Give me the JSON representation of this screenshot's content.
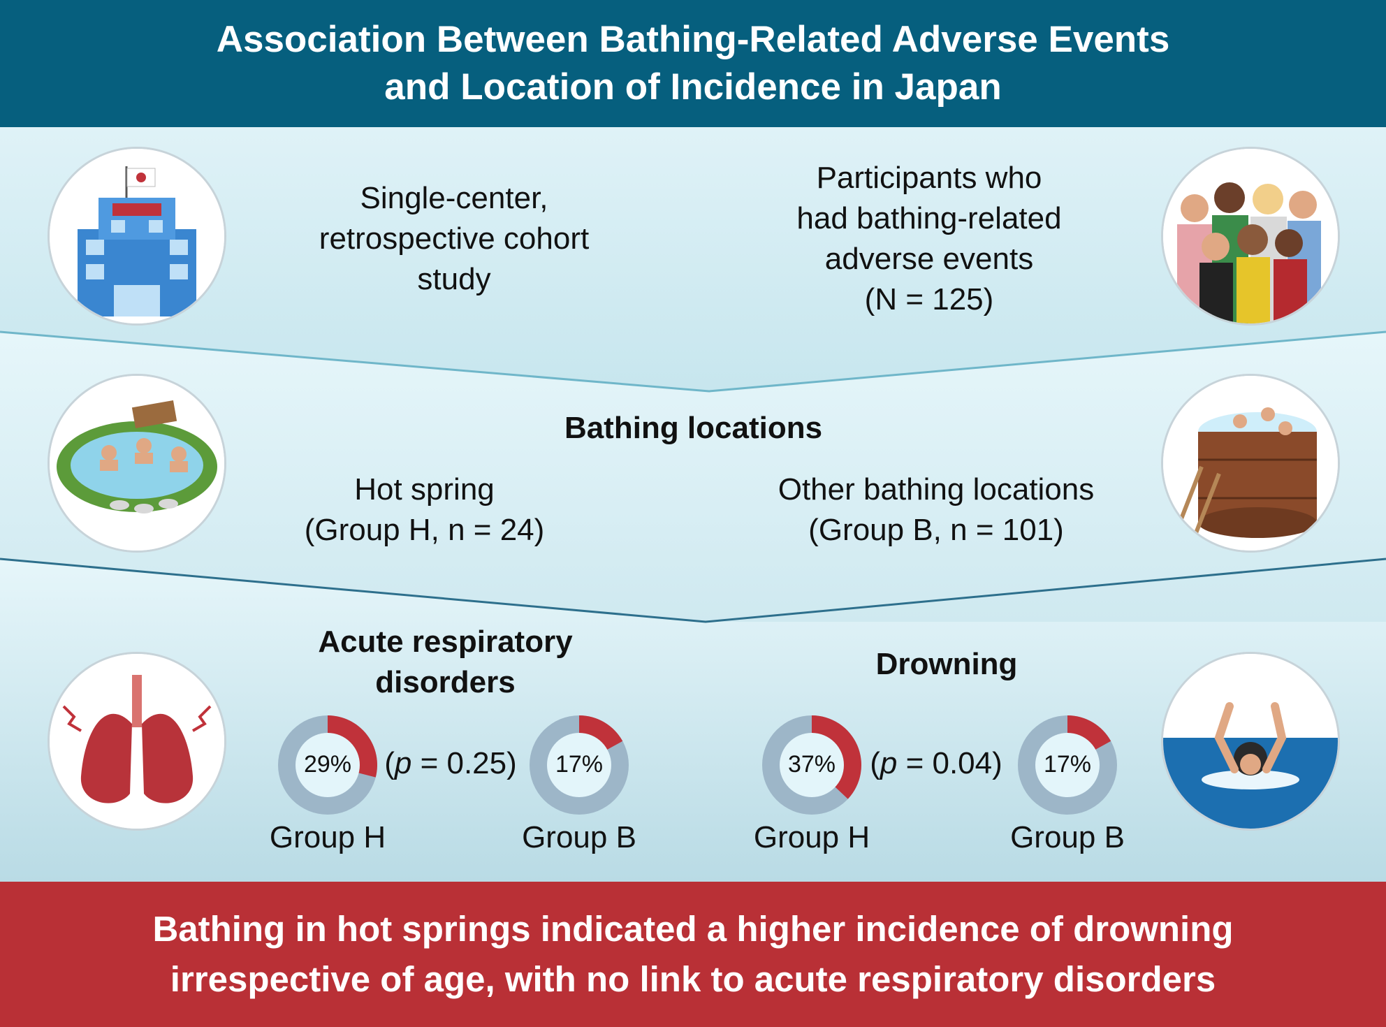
{
  "header": {
    "title_line1": "Association Between Bathing-Related Adverse Events",
    "title_line2": "and Location of Incidence in Japan"
  },
  "study": {
    "design_line1": "Single-center,",
    "design_line2": "retrospective cohort",
    "design_line3": "study",
    "participants_line1": "Participants who",
    "participants_line2": "had bathing-related",
    "participants_line3": "adverse events",
    "participants_line4": "(N = 125)"
  },
  "locations": {
    "heading": "Bathing locations",
    "hot_spring_line1": "Hot spring",
    "hot_spring_line2": "(Group H, n = 24)",
    "other_line1": "Other bathing locations",
    "other_line2": "(Group B, n = 101)"
  },
  "outcomes": {
    "respiratory_line1": "Acute respiratory",
    "respiratory_line2": "disorders",
    "respiratory_p": "(p = 0.25)",
    "respiratory_p_prefix": "(",
    "respiratory_p_var": "p",
    "respiratory_p_suffix": " = 0.25)",
    "drowning_heading": "Drowning",
    "drowning_p_prefix": "(",
    "drowning_p_var": "p",
    "drowning_p_suffix": " = 0.04)",
    "group_h": "Group H",
    "group_b": "Group B"
  },
  "chart_data": [
    {
      "type": "pie",
      "title": "Acute respiratory disorders",
      "categories": [
        "Group H",
        "Group B"
      ],
      "values": [
        29,
        17
      ],
      "labels": [
        "29%",
        "17%"
      ],
      "unit": "%"
    },
    {
      "type": "pie",
      "title": "Drowning",
      "categories": [
        "Group H",
        "Group B"
      ],
      "values": [
        37,
        17
      ],
      "labels": [
        "37%",
        "17%"
      ],
      "unit": "%"
    }
  ],
  "colors": {
    "header": "#065f7e",
    "footer": "#b93036",
    "donut_highlight": "#c0323a",
    "donut_rest": "#9db6c8",
    "donut_center": "#e3f5fa"
  },
  "icons": {
    "hospital": "hospital-icon",
    "people": "people-group-icon",
    "hot_spring": "hot-spring-icon",
    "bath_tub": "wooden-bath-icon",
    "lungs": "lungs-icon",
    "drowning": "drowning-person-icon"
  },
  "footer": {
    "line1": "Bathing in hot springs indicated a higher incidence of drowning",
    "line2": "irrespective of age, with no link to acute respiratory disorders"
  }
}
